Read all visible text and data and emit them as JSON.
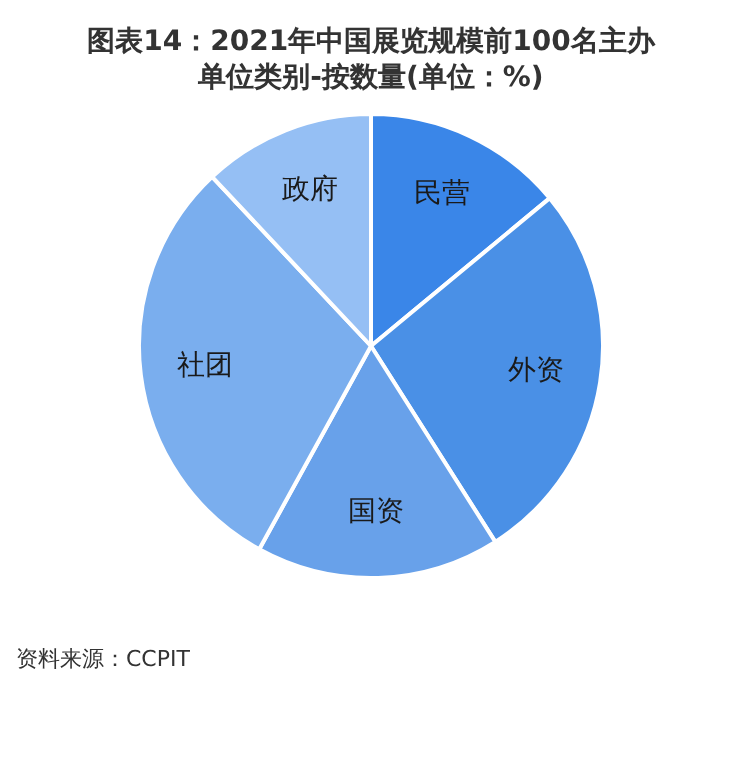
{
  "chart_data": {
    "type": "pie",
    "title": "图表14：2021年中国展览规模前100名主办单位类别-按数量(单位：%)",
    "categories": [
      "民营",
      "外资",
      "国资",
      "社团",
      "政府"
    ],
    "values": [
      14,
      27,
      17,
      30,
      12
    ],
    "colors": [
      "#3a86e8",
      "#4a90e6",
      "#68a1ea",
      "#7aaeee",
      "#95bff4"
    ],
    "legend": false,
    "annotations": [
      "资料来源：CCPIT"
    ]
  }
}
